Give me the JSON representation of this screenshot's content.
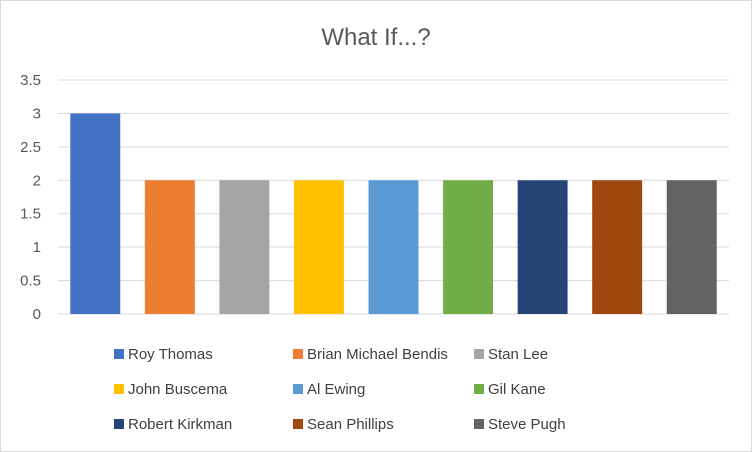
{
  "chart_data": {
    "type": "bar",
    "title": "What If...?",
    "xlabel": "",
    "ylabel": "",
    "ylim": [
      0,
      3.5
    ],
    "yticks": [
      "0",
      "0.5",
      "1",
      "1.5",
      "2",
      "2.5",
      "3",
      "3.5"
    ],
    "grid": true,
    "legend_position": "bottom",
    "series": [
      {
        "name": "Roy Thomas",
        "value": 3,
        "color": "#4472C4"
      },
      {
        "name": "Brian Michael Bendis",
        "value": 2,
        "color": "#ED7D31"
      },
      {
        "name": "Stan Lee",
        "value": 2,
        "color": "#A5A5A5"
      },
      {
        "name": "John Buscema",
        "value": 2,
        "color": "#FFC000"
      },
      {
        "name": "Al Ewing",
        "value": 2,
        "color": "#5B9BD5"
      },
      {
        "name": "Gil Kane",
        "value": 2,
        "color": "#70AD47"
      },
      {
        "name": "Robert Kirkman",
        "value": 2,
        "color": "#264478"
      },
      {
        "name": "Sean Phillips",
        "value": 2,
        "color": "#9E480E"
      },
      {
        "name": "Steve Pugh",
        "value": 2,
        "color": "#636363"
      }
    ]
  }
}
